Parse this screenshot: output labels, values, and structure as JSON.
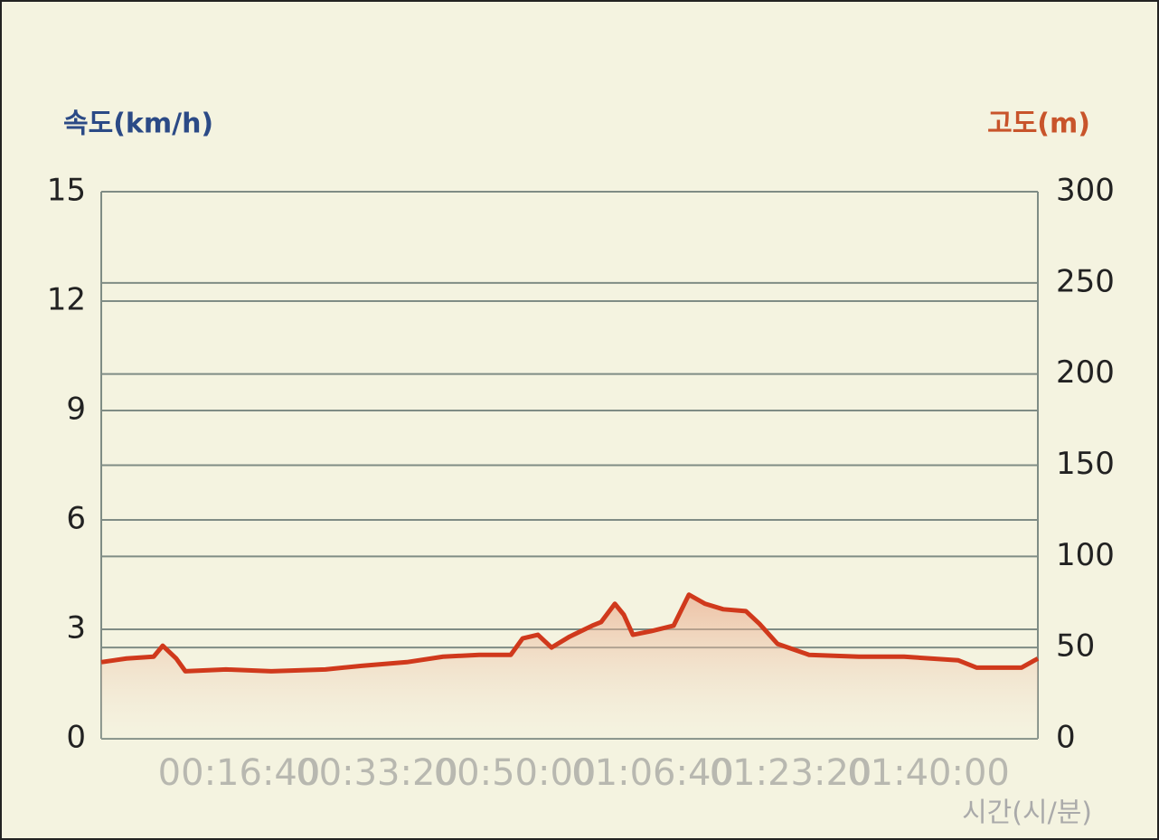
{
  "chart_data": {
    "type": "area",
    "y_label": "속도(km/h)",
    "y2_label": "고도(m)",
    "x_label": "시간(시/분)",
    "x": [
      0,
      184,
      380,
      446,
      544,
      610,
      905,
      1233,
      1626,
      1889,
      2216,
      2479,
      2741,
      2970,
      3056,
      3167,
      3266,
      3397,
      3561,
      3626,
      3725,
      3790,
      3856,
      3987,
      4151,
      4262,
      4380,
      4511,
      4675,
      4774,
      4905,
      5134,
      5495,
      5823,
      6216,
      6348,
      6675,
      6793
    ],
    "series": [
      {
        "color": "#d0391c",
        "axis": "y2",
        "values": [
          42,
          44,
          45,
          51,
          44,
          37,
          38,
          37,
          38,
          40,
          42,
          45,
          46,
          46,
          55,
          57,
          50,
          56,
          62,
          64,
          74,
          68,
          57,
          59,
          62,
          79,
          74,
          71,
          70,
          63,
          52,
          46,
          45,
          45,
          43,
          39,
          39,
          44
        ]
      }
    ],
    "xlim": [
      0,
      6793
    ],
    "xticks": [
      {
        "value": 1000,
        "label": "00:16:40"
      },
      {
        "value": 2000,
        "label": "00:33:20"
      },
      {
        "value": 3000,
        "label": "00:50:00"
      },
      {
        "value": 4000,
        "label": "01:06:40"
      },
      {
        "value": 5000,
        "label": "01:23:20"
      },
      {
        "value": 6000,
        "label": "01:40:00"
      }
    ],
    "ylim": [
      0,
      15
    ],
    "yticks": [
      0,
      3,
      6,
      9,
      12,
      15
    ],
    "y2lim": [
      0,
      300
    ],
    "y2ticks": [
      0,
      50,
      100,
      150,
      200,
      250,
      300
    ],
    "grid": true
  }
}
